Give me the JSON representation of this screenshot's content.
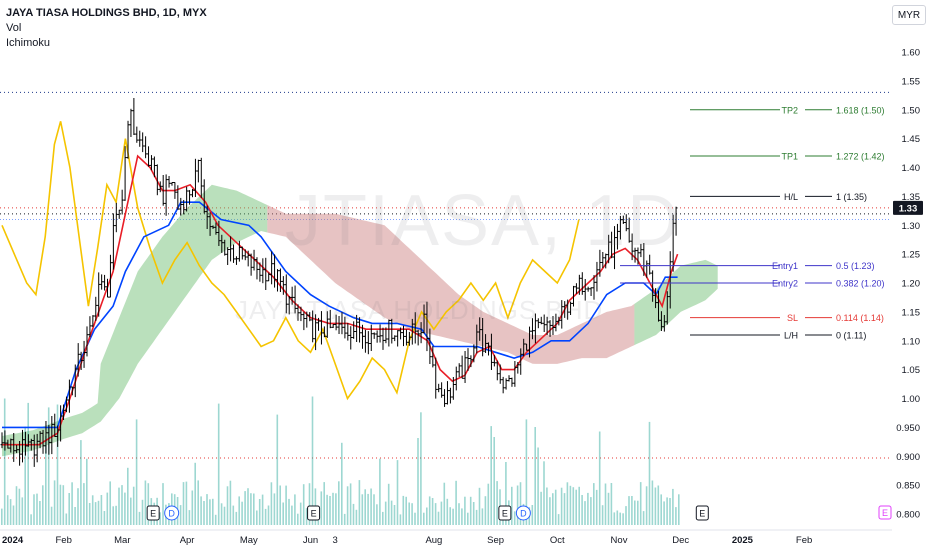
{
  "header": {
    "symbol_title": "JAYA TIASA HOLDINGS BHD, 1D, MYX",
    "indicators": [
      "Vol",
      "Ichimoku"
    ],
    "currency": "MYR"
  },
  "watermark": {
    "symbol": "JTIASA, 1D",
    "name": "JAYA TIASA HOLDINGS BHD"
  },
  "colors": {
    "candle": "#000000",
    "conversion_line": "#e91e27",
    "base_line": "#0044ff",
    "lagging_span": "#f5c400",
    "cloud_bull": "#66bb6a",
    "cloud_bear": "#c97a7a",
    "volume": "#26a69a",
    "fib_tp": "#2e7d32",
    "fib_entry": "#3f35c9",
    "fib_sl": "#e53935",
    "fib_range": "#131722",
    "price_label_bg": "#131722"
  },
  "chart_data": {
    "type": "candlestick",
    "y_axis": {
      "range": [
        0.78,
        1.62
      ],
      "ticks": [
        "1.60",
        "1.55",
        "1.50",
        "1.45",
        "1.40",
        "1.35",
        "1.30",
        "1.25",
        "1.20",
        "1.15",
        "1.10",
        "1.05",
        "1.00",
        "0.950",
        "0.900",
        "0.850",
        "0.800"
      ],
      "last_price": "1.33"
    },
    "x_axis": {
      "labels": [
        "2024",
        "Feb",
        "Mar",
        "Apr",
        "May",
        "Jun",
        "3",
        "Aug",
        "Sep",
        "Oct",
        "Nov",
        "Dec",
        "2025",
        "Feb"
      ],
      "label_x": [
        0,
        1,
        1.95,
        3,
        4,
        5,
        5.4,
        7,
        8,
        9,
        10,
        11,
        12,
        13
      ]
    },
    "price_key_points": [
      [
        0,
        0.92
      ],
      [
        0.4,
        0.91
      ],
      [
        0.7,
        0.93
      ],
      [
        0.9,
        0.95
      ],
      [
        1.1,
        1.02
      ],
      [
        1.3,
        1.08
      ],
      [
        1.45,
        1.12
      ],
      [
        1.55,
        1.2
      ],
      [
        1.7,
        1.18
      ],
      [
        1.8,
        1.28
      ],
      [
        1.95,
        1.35
      ],
      [
        2.05,
        1.5
      ],
      [
        2.15,
        1.46
      ],
      [
        2.3,
        1.43
      ],
      [
        2.5,
        1.38
      ],
      [
        2.6,
        1.35
      ],
      [
        2.75,
        1.38
      ],
      [
        2.85,
        1.33
      ],
      [
        3.05,
        1.36
      ],
      [
        3.2,
        1.4
      ],
      [
        3.3,
        1.32
      ],
      [
        3.5,
        1.27
      ],
      [
        3.8,
        1.25
      ],
      [
        4.2,
        1.22
      ],
      [
        4.4,
        1.22
      ],
      [
        4.7,
        1.16
      ],
      [
        5.0,
        1.12
      ],
      [
        5.3,
        1.12
      ],
      [
        5.7,
        1.12
      ],
      [
        6.0,
        1.11
      ],
      [
        6.3,
        1.12
      ],
      [
        6.6,
        1.11
      ],
      [
        6.85,
        1.13
      ],
      [
        7.05,
        1.02
      ],
      [
        7.2,
        1.0
      ],
      [
        7.4,
        1.04
      ],
      [
        7.55,
        1.06
      ],
      [
        7.7,
        1.12
      ],
      [
        7.85,
        1.08
      ],
      [
        8.0,
        1.06
      ],
      [
        8.15,
        1.02
      ],
      [
        8.3,
        1.04
      ],
      [
        8.5,
        1.1
      ],
      [
        8.65,
        1.12
      ],
      [
        8.8,
        1.12
      ],
      [
        9.0,
        1.13
      ],
      [
        9.2,
        1.17
      ],
      [
        9.4,
        1.2
      ],
      [
        9.6,
        1.21
      ],
      [
        9.75,
        1.25
      ],
      [
        9.9,
        1.26
      ],
      [
        10.05,
        1.3
      ],
      [
        10.2,
        1.26
      ],
      [
        10.35,
        1.25
      ],
      [
        10.5,
        1.22
      ],
      [
        10.6,
        1.15
      ],
      [
        10.7,
        1.11
      ],
      [
        10.8,
        1.2
      ],
      [
        10.88,
        1.29
      ],
      [
        10.95,
        1.33
      ]
    ],
    "conversion_line_points": [
      [
        0,
        0.92
      ],
      [
        0.6,
        0.92
      ],
      [
        0.9,
        0.94
      ],
      [
        1.1,
        1.0
      ],
      [
        1.4,
        1.1
      ],
      [
        1.6,
        1.16
      ],
      [
        1.8,
        1.22
      ],
      [
        2.0,
        1.32
      ],
      [
        2.2,
        1.42
      ],
      [
        2.4,
        1.4
      ],
      [
        2.6,
        1.36
      ],
      [
        2.8,
        1.36
      ],
      [
        3.05,
        1.37
      ],
      [
        3.3,
        1.34
      ],
      [
        3.5,
        1.3
      ],
      [
        3.8,
        1.27
      ],
      [
        4.1,
        1.24
      ],
      [
        4.4,
        1.21
      ],
      [
        4.7,
        1.17
      ],
      [
        5.0,
        1.14
      ],
      [
        5.3,
        1.13
      ],
      [
        5.6,
        1.13
      ],
      [
        5.9,
        1.12
      ],
      [
        6.3,
        1.12
      ],
      [
        6.6,
        1.12
      ],
      [
        6.9,
        1.1
      ],
      [
        7.1,
        1.05
      ],
      [
        7.3,
        1.03
      ],
      [
        7.5,
        1.04
      ],
      [
        7.7,
        1.08
      ],
      [
        7.9,
        1.09
      ],
      [
        8.1,
        1.05
      ],
      [
        8.3,
        1.05
      ],
      [
        8.5,
        1.08
      ],
      [
        8.7,
        1.1
      ],
      [
        9.0,
        1.13
      ],
      [
        9.2,
        1.17
      ],
      [
        9.5,
        1.2
      ],
      [
        9.7,
        1.22
      ],
      [
        9.9,
        1.25
      ],
      [
        10.1,
        1.26
      ],
      [
        10.3,
        1.24
      ],
      [
        10.5,
        1.2
      ],
      [
        10.7,
        1.16
      ],
      [
        10.85,
        1.22
      ],
      [
        10.95,
        1.25
      ]
    ],
    "base_line_points": [
      [
        0,
        0.95
      ],
      [
        0.9,
        0.95
      ],
      [
        1.2,
        1.05
      ],
      [
        1.5,
        1.12
      ],
      [
        1.8,
        1.16
      ],
      [
        2.0,
        1.22
      ],
      [
        2.3,
        1.28
      ],
      [
        2.7,
        1.3
      ],
      [
        2.9,
        1.34
      ],
      [
        3.2,
        1.34
      ],
      [
        3.55,
        1.31
      ],
      [
        4.0,
        1.3
      ],
      [
        4.2,
        1.28
      ],
      [
        4.6,
        1.22
      ],
      [
        5.0,
        1.18
      ],
      [
        5.3,
        1.16
      ],
      [
        5.7,
        1.14
      ],
      [
        6.0,
        1.13
      ],
      [
        6.4,
        1.13
      ],
      [
        6.8,
        1.12
      ],
      [
        7.0,
        1.09
      ],
      [
        7.3,
        1.09
      ],
      [
        7.7,
        1.09
      ],
      [
        8.0,
        1.08
      ],
      [
        8.3,
        1.07
      ],
      [
        8.6,
        1.08
      ],
      [
        8.9,
        1.1
      ],
      [
        9.2,
        1.1
      ],
      [
        9.5,
        1.13
      ],
      [
        9.8,
        1.18
      ],
      [
        10.1,
        1.2
      ],
      [
        10.4,
        1.2
      ],
      [
        10.6,
        1.18
      ],
      [
        10.75,
        1.21
      ],
      [
        10.95,
        1.21
      ]
    ],
    "lagging_span_points": [
      [
        0,
        1.3
      ],
      [
        0.2,
        1.25
      ],
      [
        0.4,
        1.2
      ],
      [
        0.55,
        1.18
      ],
      [
        0.7,
        1.28
      ],
      [
        0.85,
        1.44
      ],
      [
        0.95,
        1.48
      ],
      [
        1.1,
        1.4
      ],
      [
        1.25,
        1.28
      ],
      [
        1.4,
        1.16
      ],
      [
        1.55,
        1.26
      ],
      [
        1.7,
        1.37
      ],
      [
        1.85,
        1.34
      ],
      [
        2.0,
        1.45
      ],
      [
        2.2,
        1.33
      ],
      [
        2.4,
        1.26
      ],
      [
        2.6,
        1.2
      ],
      [
        2.8,
        1.24
      ],
      [
        3.0,
        1.27
      ],
      [
        3.2,
        1.23
      ],
      [
        3.4,
        1.2
      ],
      [
        3.6,
        1.18
      ],
      [
        3.8,
        1.15
      ],
      [
        4.0,
        1.12
      ],
      [
        4.2,
        1.09
      ],
      [
        4.4,
        1.1
      ],
      [
        4.6,
        1.14
      ],
      [
        4.8,
        1.1
      ],
      [
        5.0,
        1.08
      ],
      [
        5.2,
        1.12
      ],
      [
        5.4,
        1.06
      ],
      [
        5.6,
        1.0
      ],
      [
        5.8,
        1.03
      ],
      [
        6.0,
        1.07
      ],
      [
        6.2,
        1.05
      ],
      [
        6.4,
        1.01
      ],
      [
        6.6,
        1.1
      ],
      [
        6.8,
        1.15
      ],
      [
        7.0,
        1.12
      ],
      [
        7.2,
        1.15
      ],
      [
        7.4,
        1.17
      ],
      [
        7.6,
        1.2
      ],
      [
        7.8,
        1.17
      ],
      [
        8.0,
        1.2
      ],
      [
        8.2,
        1.14
      ],
      [
        8.4,
        1.2
      ],
      [
        8.6,
        1.24
      ],
      [
        8.8,
        1.22
      ],
      [
        9.0,
        1.2
      ],
      [
        9.2,
        1.24
      ],
      [
        9.35,
        1.31
      ]
    ],
    "cloud_upper_points": [
      [
        1.6,
        1.06
      ],
      [
        1.9,
        1.14
      ],
      [
        2.2,
        1.22
      ],
      [
        2.6,
        1.28
      ],
      [
        3.0,
        1.33
      ],
      [
        3.4,
        1.37
      ],
      [
        3.8,
        1.36
      ],
      [
        4.2,
        1.34
      ],
      [
        4.6,
        1.32
      ],
      [
        5.0,
        1.32
      ],
      [
        5.4,
        1.32
      ],
      [
        5.8,
        1.31
      ],
      [
        6.2,
        1.3
      ],
      [
        6.6,
        1.26
      ],
      [
        7.0,
        1.22
      ],
      [
        7.4,
        1.18
      ],
      [
        7.8,
        1.15
      ],
      [
        8.2,
        1.13
      ],
      [
        8.6,
        1.11
      ],
      [
        9.0,
        1.11
      ],
      [
        9.4,
        1.13
      ],
      [
        9.8,
        1.15
      ],
      [
        10.2,
        1.16
      ],
      [
        10.6,
        1.19
      ],
      [
        11.0,
        1.23
      ],
      [
        11.4,
        1.24
      ],
      [
        11.6,
        1.23
      ]
    ],
    "cloud_lower_points": [
      [
        0,
        0.9
      ],
      [
        0.5,
        0.91
      ],
      [
        1.0,
        0.93
      ],
      [
        1.3,
        0.94
      ],
      [
        1.6,
        0.96
      ],
      [
        1.9,
        1.0
      ],
      [
        2.2,
        1.06
      ],
      [
        2.6,
        1.12
      ],
      [
        3.0,
        1.18
      ],
      [
        3.4,
        1.24
      ],
      [
        3.8,
        1.27
      ],
      [
        4.2,
        1.29
      ],
      [
        4.6,
        1.28
      ],
      [
        5.0,
        1.24
      ],
      [
        5.4,
        1.2
      ],
      [
        5.8,
        1.17
      ],
      [
        6.2,
        1.14
      ],
      [
        6.6,
        1.12
      ],
      [
        7.0,
        1.11
      ],
      [
        7.4,
        1.1
      ],
      [
        7.8,
        1.09
      ],
      [
        8.2,
        1.08
      ],
      [
        8.6,
        1.06
      ],
      [
        9.0,
        1.06
      ],
      [
        9.4,
        1.07
      ],
      [
        9.8,
        1.07
      ],
      [
        10.2,
        1.09
      ],
      [
        10.6,
        1.11
      ],
      [
        11.0,
        1.15
      ],
      [
        11.4,
        1.17
      ],
      [
        11.6,
        1.19
      ]
    ],
    "horizontal_levels": {
      "dotted_blue_top": 1.53,
      "dotted_red_high": 1.33,
      "dotted_black_high": 1.325,
      "dotted_blue_mid": 1.31,
      "dotted_red_low": 0.897
    },
    "fibonacci": [
      {
        "tag": "TP2",
        "ratio": "1.618 (1.50)",
        "price": 1.5,
        "role": "tp"
      },
      {
        "tag": "TP1",
        "ratio": "1.272 (1.42)",
        "price": 1.42,
        "role": "tp"
      },
      {
        "tag": "H/L",
        "ratio": "1 (1.35)",
        "price": 1.35,
        "role": "range"
      },
      {
        "tag": "Entry1",
        "ratio": "0.5 (1.23)",
        "price": 1.23,
        "role": "entry"
      },
      {
        "tag": "Entry2",
        "ratio": "0.382 (1.20)",
        "price": 1.2,
        "role": "entry"
      },
      {
        "tag": "SL",
        "ratio": "0.114 (1.14)",
        "price": 1.14,
        "role": "sl"
      },
      {
        "tag": "L/H",
        "ratio": "0 (1.11)",
        "price": 1.11,
        "role": "range"
      }
    ],
    "event_markers": [
      {
        "x": 2.45,
        "label": "E",
        "kind": "earnings"
      },
      {
        "x": 2.75,
        "label": "D",
        "kind": "dividend"
      },
      {
        "x": 5.05,
        "label": "E",
        "kind": "earnings"
      },
      {
        "x": 8.15,
        "label": "E",
        "kind": "earnings"
      },
      {
        "x": 8.45,
        "label": "D",
        "kind": "dividend"
      },
      {
        "x": 11.35,
        "label": "E",
        "kind": "earnings"
      },
      {
        "x": 14.5,
        "label": "E",
        "kind": "earnings-upcoming"
      }
    ]
  }
}
